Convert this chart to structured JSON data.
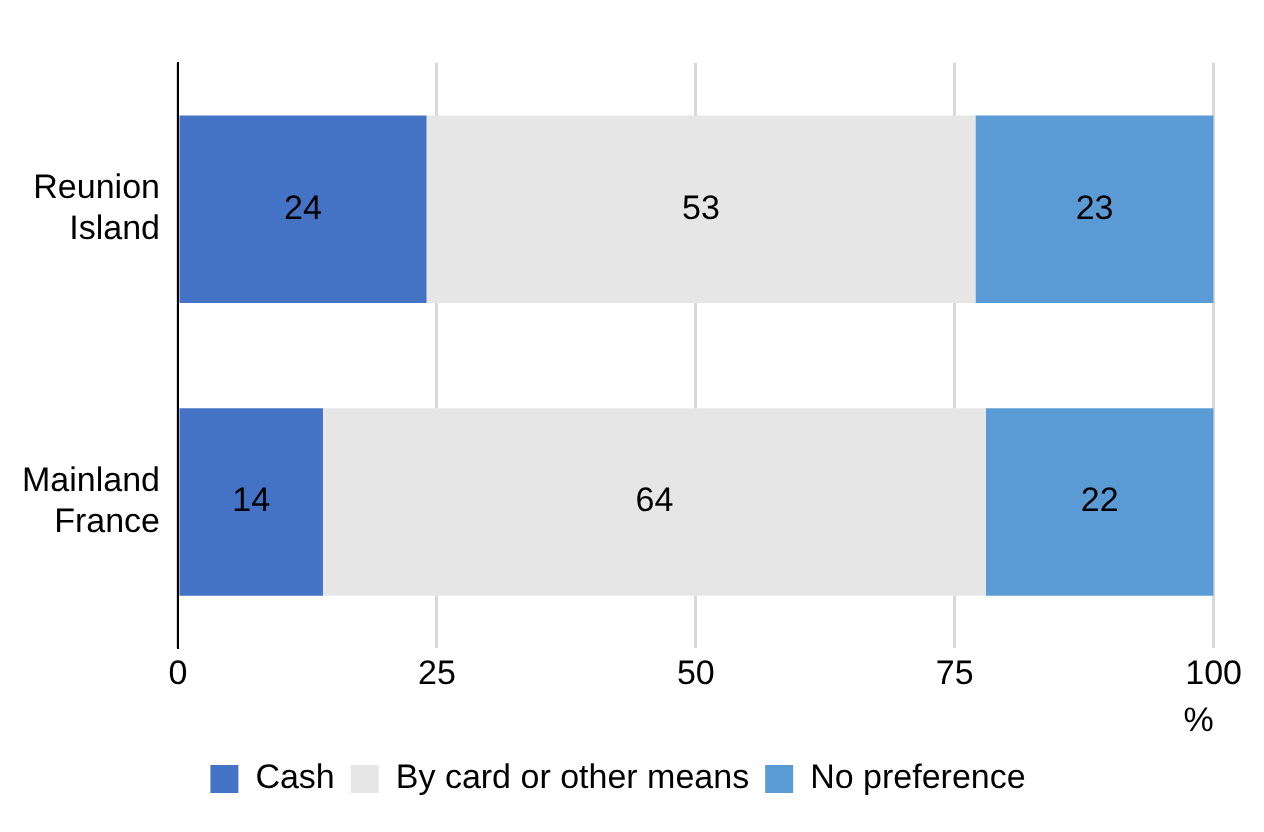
{
  "chart_data": {
    "type": "bar",
    "orientation": "horizontal",
    "stacked": true,
    "categories": [
      "Reunion Island",
      "Mainland France"
    ],
    "series": [
      {
        "name": "Cash",
        "color": "#4472c4",
        "values": [
          24,
          14
        ]
      },
      {
        "name": "By card or other means",
        "color": "#e7e6e6",
        "values": [
          53,
          64
        ]
      },
      {
        "name": "No preference",
        "color": "#5b9bd5",
        "values": [
          23,
          22
        ]
      }
    ],
    "xlabel": "%",
    "xlim": [
      0,
      100
    ],
    "xticks": [
      0,
      25,
      50,
      75,
      100
    ],
    "grid": "x",
    "legend": "bottom",
    "data_labels": true
  }
}
